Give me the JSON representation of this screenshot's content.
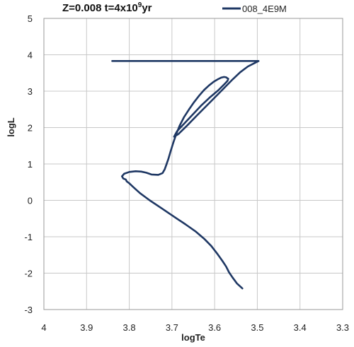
{
  "chart_data": {
    "type": "line",
    "title_main": "Z=0.008 t=4x10",
    "title_exp": "9",
    "title_unit": "yr",
    "xlabel": "logTe",
    "ylabel": "logL",
    "xlim": [
      4,
      3.3
    ],
    "ylim": [
      -3,
      5
    ],
    "x_reversed": true,
    "grid": true,
    "legend_position": "top-right",
    "xticks": [
      "4",
      "3.9",
      "3.8",
      "3.7",
      "3.6",
      "3.5",
      "3.4",
      "3.3"
    ],
    "yticks": [
      "5",
      "4",
      "3",
      "2",
      "1",
      "0",
      "-1",
      "-2",
      "-3"
    ],
    "series": [
      {
        "name": "008_4E9M",
        "color": "#1f3864",
        "x": [
          3.535,
          3.548,
          3.558,
          3.566,
          3.573,
          3.582,
          3.593,
          3.608,
          3.625,
          3.645,
          3.668,
          3.695,
          3.724,
          3.752,
          3.775,
          3.792,
          3.8,
          3.806,
          3.808,
          3.814,
          3.817,
          3.812,
          3.8,
          3.785,
          3.772,
          3.76,
          3.748,
          3.732,
          3.722,
          3.717,
          3.713,
          3.708,
          3.703,
          3.697,
          3.69,
          3.682,
          3.672,
          3.66,
          3.648,
          3.636,
          3.625,
          3.613,
          3.602,
          3.592,
          3.585,
          3.578,
          3.573,
          3.568,
          3.57,
          3.578,
          3.592,
          3.612,
          3.632,
          3.652,
          3.672,
          3.688,
          3.695,
          3.685,
          3.665,
          3.64,
          3.612,
          3.585,
          3.56,
          3.54,
          3.522,
          3.505,
          3.497,
          3.84
        ],
        "y": [
          -2.42,
          -2.28,
          -2.12,
          -1.98,
          -1.82,
          -1.66,
          -1.48,
          -1.25,
          -1.05,
          -0.85,
          -0.66,
          -0.45,
          -0.22,
          0.0,
          0.2,
          0.38,
          0.47,
          0.52,
          0.57,
          0.6,
          0.66,
          0.73,
          0.78,
          0.8,
          0.79,
          0.76,
          0.71,
          0.7,
          0.75,
          0.85,
          0.98,
          1.15,
          1.35,
          1.58,
          1.82,
          2.05,
          2.28,
          2.5,
          2.7,
          2.88,
          3.03,
          3.16,
          3.26,
          3.33,
          3.37,
          3.39,
          3.38,
          3.34,
          3.28,
          3.18,
          3.02,
          2.82,
          2.6,
          2.35,
          2.1,
          1.9,
          1.75,
          1.82,
          2.05,
          2.35,
          2.68,
          3.0,
          3.3,
          3.52,
          3.68,
          3.78,
          3.83,
          3.83
        ]
      }
    ]
  }
}
